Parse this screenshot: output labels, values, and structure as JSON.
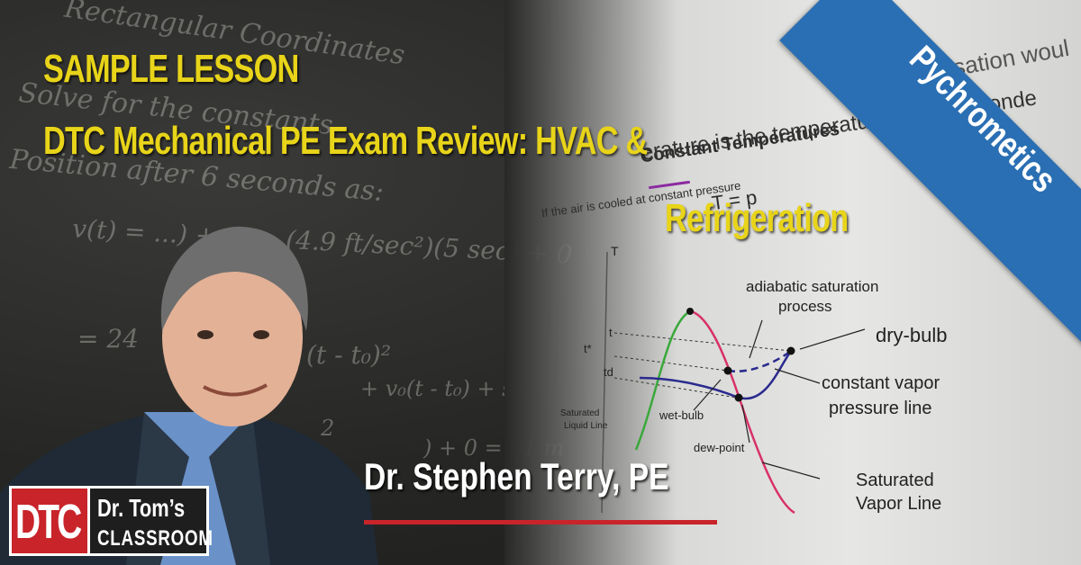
{
  "lesson": {
    "tag": "SAMPLE LESSON",
    "title_part1": "DTC Mechanical PE Exam Review:  HVAC &",
    "title_part2": "Refrigeration"
  },
  "ribbon": {
    "label": "Pychrometics"
  },
  "presenter": {
    "name": "Dr. Stephen Terry, PE"
  },
  "logo": {
    "mark": "DTC",
    "line1": "Dr. Tom’s",
    "line2": "CLASSROOM"
  },
  "chalkboard": {
    "lines": [
      "Rectangular Coordinates",
      "Solve for the constants",
      "Position after 6 seconds as:",
      "v(t) = ...) + v₀ = (4.9 ft/sec²)(5 sec) + 0",
      "= 24",
      "(t - t₀)²",
      "+ v₀(t - t₀) + s₀",
      "2",
      ") + 0 = 61 m"
    ]
  },
  "paper": {
    "heading": "Constant Temperatures",
    "snippet1": "erature is the temperature at which conde",
    "snippet2": "If the air is cooled at constant pressure",
    "snippet3": "ndensation woul",
    "snippet4": "T = p"
  },
  "diagram": {
    "axis_label": "T",
    "tick_t": "t",
    "tick_tstar": "t*",
    "tick_td": "td",
    "labels": {
      "adiabatic": "adiabatic saturation",
      "process": "process",
      "dry_bulb": "dry-bulb",
      "constant1": "constant vapor",
      "constant2": "pressure line",
      "wet_bulb": "wet-bulb",
      "dew_point": "dew-point",
      "saturated1": "Saturated",
      "saturated2": "Vapor Line",
      "sat_liquid1": "Saturated",
      "sat_liquid2": "Liquid Line"
    }
  },
  "colors": {
    "title_yellow": "#e8d419",
    "ribbon_blue": "#2a6fb3",
    "brand_red": "#c8242a"
  }
}
